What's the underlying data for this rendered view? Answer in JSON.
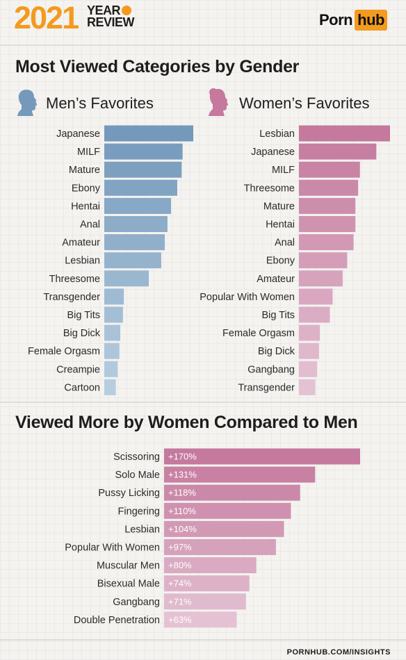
{
  "header": {
    "year": "2021",
    "subtitle_top": "YEAR",
    "subtitle_bottom": "REVIEW",
    "logo_left": "Porn",
    "logo_right": "hub"
  },
  "section1": {
    "title": "Most Viewed Categories by Gender",
    "men_heading": "Men’s Favorites",
    "women_heading": "Women’s Favorites"
  },
  "section2": {
    "title": "Viewed More by Women Compared to Men"
  },
  "footer": "PORNHUB.COM/INSIGHTS",
  "colors": {
    "men_dark": "#7499bb",
    "men_light": "#b7cde0",
    "women_dark": "#c4799d",
    "women_light": "#e4c2d3",
    "accent_orange": "#f39a1f"
  },
  "chart_data": [
    {
      "type": "bar",
      "orientation": "horizontal",
      "title": "Men’s Favorites",
      "categories": [
        "Japanese",
        "MILF",
        "Mature",
        "Ebony",
        "Hentai",
        "Anal",
        "Amateur",
        "Lesbian",
        "Threesome",
        "Transgender",
        "Big Tits",
        "Big Dick",
        "Female Orgasm",
        "Creampie",
        "Cartoon"
      ],
      "values": [
        100,
        88,
        87,
        82,
        75,
        71,
        68,
        64,
        50,
        22,
        21,
        18,
        17,
        15,
        13
      ]
    },
    {
      "type": "bar",
      "orientation": "horizontal",
      "title": "Women’s Favorites",
      "categories": [
        "Lesbian",
        "Japanese",
        "MILF",
        "Threesome",
        "Mature",
        "Hentai",
        "Anal",
        "Ebony",
        "Amateur",
        "Popular With Women",
        "Big Tits",
        "Female Orgasm",
        "Big Dick",
        "Gangbang",
        "Transgender"
      ],
      "values": [
        100,
        85,
        67,
        65,
        62,
        62,
        60,
        53,
        48,
        37,
        34,
        23,
        22,
        20,
        18
      ]
    },
    {
      "type": "bar",
      "orientation": "horizontal",
      "title": "Viewed More by Women Compared to Men",
      "categories": [
        "Scissoring",
        "Solo Male",
        "Pussy Licking",
        "Fingering",
        "Lesbian",
        "Popular With Women",
        "Muscular Men",
        "Bisexual Male",
        "Gangbang",
        "Double Penetration"
      ],
      "values": [
        170,
        131,
        118,
        110,
        104,
        97,
        80,
        74,
        71,
        63
      ],
      "value_labels": [
        "+170%",
        "+131%",
        "+118%",
        "+110%",
        "+104%",
        "+97%",
        "+80%",
        "+74%",
        "+71%",
        "+63%"
      ]
    }
  ]
}
